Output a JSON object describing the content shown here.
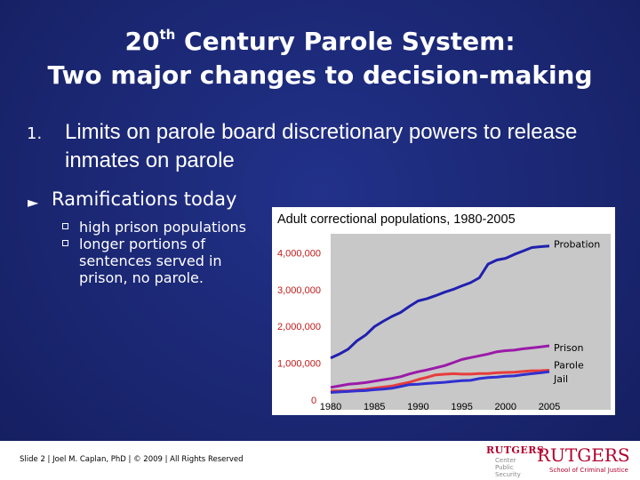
{
  "slide": {
    "title_line1_pre": "20",
    "title_line1_sup": "th",
    "title_line1_post": " Century Parole System:",
    "title_line2": "Two major changes to decision-making",
    "item1_number": "1.",
    "item1_text": "Limits on parole board discretionary powers to release inmates on parole",
    "item2_text": "Ramifications today",
    "subitems": [
      "high prison populations",
      "longer portions of sentences served in prison, no parole."
    ],
    "footer": "Slide 2 | Joel M. Caplan, PhD | © 2009 | All Rights Reserved",
    "logo_left": {
      "name": "RUTGERS",
      "lines": [
        "Center",
        "Public",
        "Security"
      ]
    },
    "logo_right": {
      "name": "RUTGERS",
      "line": "School of Criminal Justice"
    }
  },
  "colors": {
    "background": "#1c2a78",
    "chart_bg": "#ffffff",
    "plot_bg": "#c8c8c8",
    "axis_text": "#c01818",
    "probation": "#2020b0",
    "prison": "#9a1aa8",
    "parole": "#e83c3c",
    "jail": "#3030d0"
  },
  "chart_data": {
    "type": "line",
    "title": "Adult correctional populations, 1980-2005",
    "x": [
      1980,
      1981,
      1982,
      1983,
      1984,
      1985,
      1986,
      1987,
      1988,
      1989,
      1990,
      1991,
      1992,
      1993,
      1994,
      1995,
      1996,
      1997,
      1998,
      1999,
      2000,
      2001,
      2002,
      2003,
      2004,
      2005
    ],
    "xticks": [
      1980,
      1985,
      1990,
      1995,
      2000,
      2005
    ],
    "yticks": [
      0,
      1000000,
      2000000,
      3000000,
      4000000
    ],
    "ytick_labels": [
      "0",
      "1,000,000",
      "2,000,000",
      "3,000,000",
      "4,000,000"
    ],
    "ylim": [
      0,
      4300000
    ],
    "xlim": [
      1980,
      2005
    ],
    "series": [
      {
        "name": "Probation",
        "color_key": "probation",
        "values": [
          1118097,
          1225934,
          1357264,
          1582947,
          1740948,
          1968712,
          2114621,
          2247158,
          2356483,
          2522125,
          2670234,
          2728472,
          2811611,
          2903061,
          2981022,
          3077861,
          3164996,
          3296513,
          3670441,
          3779922,
          3826209,
          3931731,
          4024067,
          4120012,
          4143792,
          4162536
        ]
      },
      {
        "name": "Prison",
        "color_key": "prison",
        "values": [
          319598,
          360029,
          402914,
          423898,
          448264,
          487593,
          526436,
          562814,
          607766,
          683367,
          743382,
          792535,
          850566,
          909381,
          990147,
          1078542,
          1127528,
          1176564,
          1224469,
          1287172,
          1316333,
          1330007,
          1367547,
          1390279,
          1421345,
          1448344
        ]
      },
      {
        "name": "Parole",
        "color_key": "parole",
        "values": [
          220438,
          225539,
          224604,
          246440,
          266992,
          300203,
          325638,
          355505,
          407977,
          456803,
          531407,
          590442,
          658601,
          676100,
          690371,
          679421,
          679733,
          694787,
          696385,
          714457,
          723898,
          732333,
          750934,
          769925,
          771852,
          784408
        ]
      },
      {
        "name": "Jail",
        "color_key": "jail",
        "values": [
          182288,
          195085,
          207853,
          221815,
          233018,
          254986,
          272736,
          294092,
          341893,
          393303,
          403019,
          424129,
          441781,
          455500,
          479800,
          499300,
          510400,
          557974,
          584372,
          596485,
          621149,
          631240,
          665475,
          691301,
          713990,
          747529
        ]
      }
    ]
  }
}
